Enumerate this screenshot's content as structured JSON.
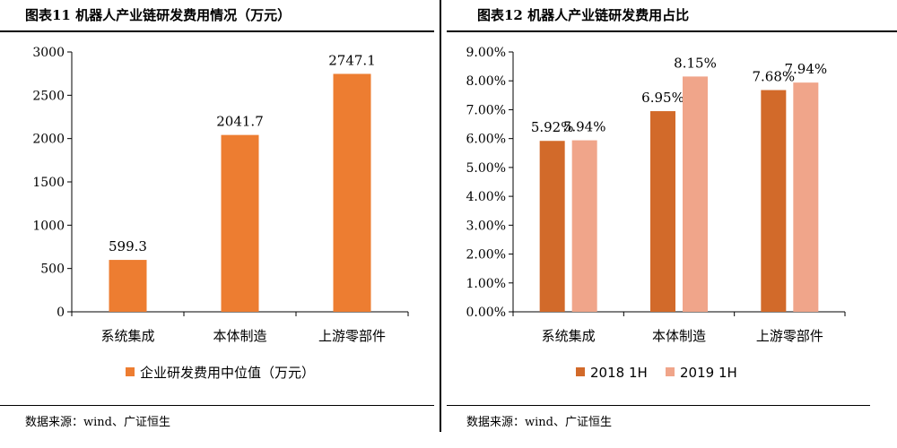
{
  "left_title": "图表11  机器人产业链研发费用情况（万元）",
  "right_title": "图表12  机器人产业链研发费用占比",
  "left_source": "数据来源：wind、广证恒生",
  "right_source": "数据来源：wind、广证恒生",
  "colors": {
    "orange": "#ED7D31",
    "dark_orange": "#D26A2A",
    "light_salmon": "#F0A58A"
  },
  "chart_data": [
    {
      "type": "bar",
      "categories": [
        "系统集成",
        "本体制造",
        "上游零部件"
      ],
      "series": [
        {
          "name": "企业研发费用中位值（万元）",
          "values": [
            599.3,
            2041.7,
            2747.1
          ],
          "labels": [
            "599.3",
            "2041.7",
            "2747.1"
          ],
          "color": "#ED7D31"
        }
      ],
      "ylim": [
        0,
        3000
      ],
      "yticks": [
        "0",
        "500",
        "1000",
        "1500",
        "2000",
        "2500",
        "3000"
      ],
      "legend": "bottom"
    },
    {
      "type": "bar",
      "categories": [
        "系统集成",
        "本体制造",
        "上游零部件"
      ],
      "series": [
        {
          "name": "2018 1H",
          "values": [
            5.92,
            6.95,
            7.68
          ],
          "labels": [
            "5.92%",
            "6.95%",
            "7.68%"
          ],
          "color": "#D26A2A"
        },
        {
          "name": "2019 1H",
          "values": [
            5.94,
            8.15,
            7.94
          ],
          "labels": [
            "5.94%",
            "8.15%",
            "7.94%"
          ],
          "color": "#F0A58A"
        }
      ],
      "ylim": [
        0,
        9
      ],
      "yticks": [
        "0.00%",
        "1.00%",
        "2.00%",
        "3.00%",
        "4.00%",
        "5.00%",
        "6.00%",
        "7.00%",
        "8.00%",
        "9.00%"
      ],
      "legend": "bottom"
    }
  ]
}
